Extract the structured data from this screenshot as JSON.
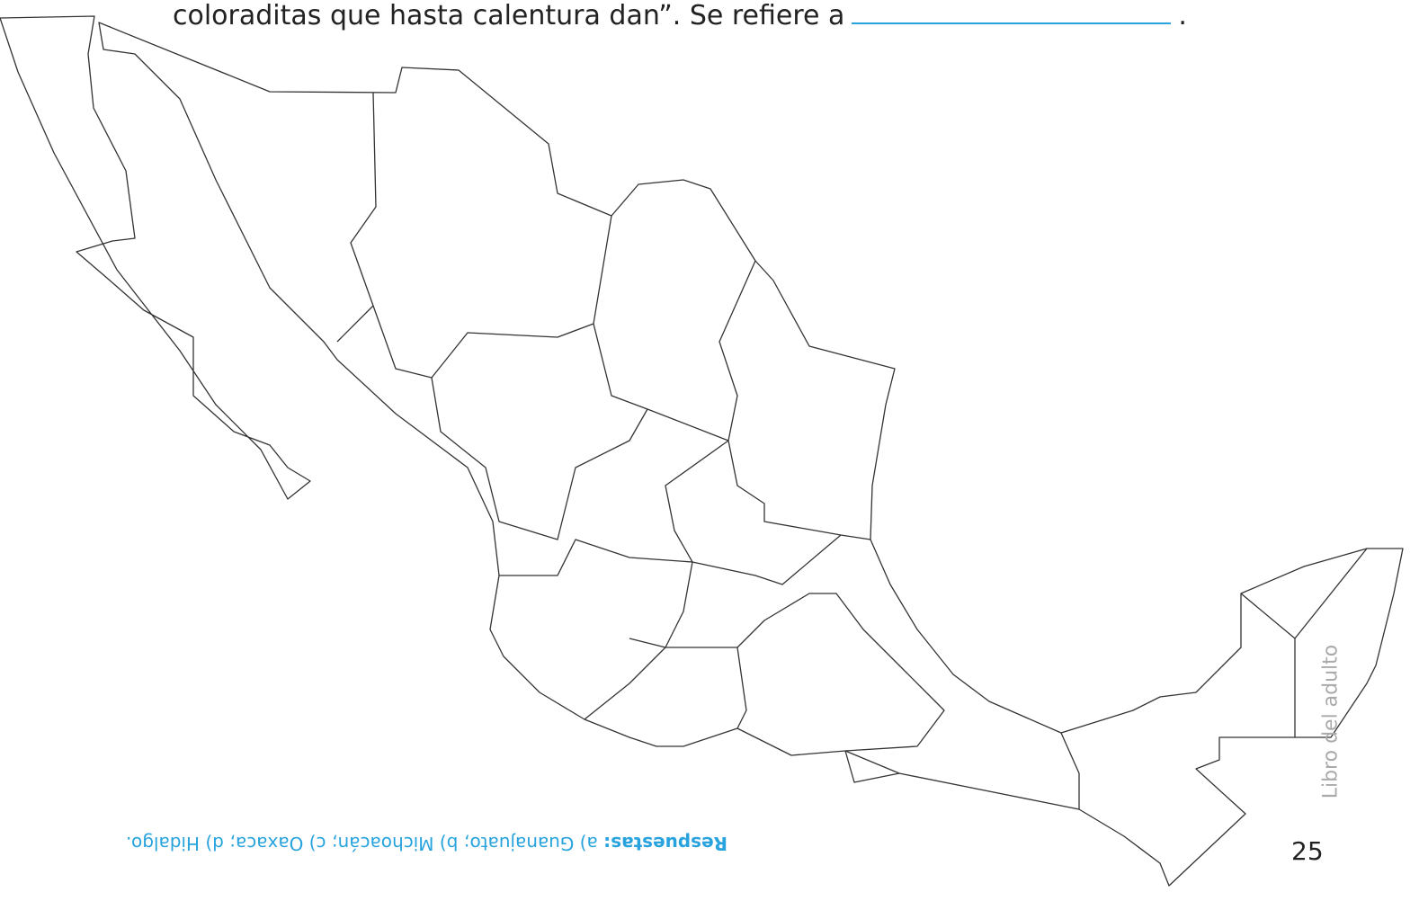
{
  "prompt": {
    "text": "coloraditas que hasta calentura dan”. Se refiere a",
    "end": "."
  },
  "answers": {
    "label": "Respuestas:",
    "text": "a) Guanajuato; b) Michoacán; c) Oaxaca; d) Hidalgo."
  },
  "footer": {
    "book": "Libro del adulto",
    "page": "25"
  }
}
